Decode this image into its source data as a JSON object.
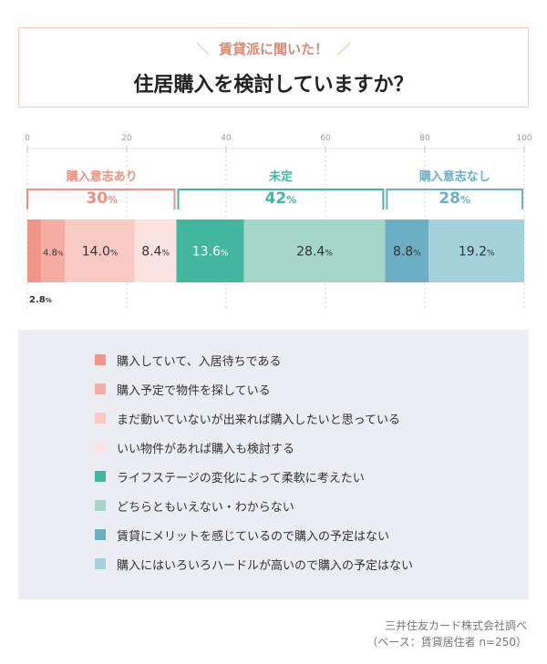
{
  "header": {
    "subtitle": "賃貸派に聞いた！",
    "title": "住居購入を検討していますか？"
  },
  "chart_data": {
    "type": "bar",
    "orientation": "horizontal-stacked",
    "xlim": [
      0,
      100
    ],
    "ticks": [
      "0",
      "20",
      "40",
      "60",
      "80",
      "100"
    ],
    "segments": [
      {
        "name": "購入していて、入居待ちである",
        "value": 2.8,
        "label": "2.8%",
        "color": "#f0958a"
      },
      {
        "name": "購入予定で物件を探している",
        "value": 4.8,
        "label": "4.8%",
        "color": "#f5ada3"
      },
      {
        "name": "まだ動いていないが出来れば購入したいと思っている",
        "value": 14.0,
        "label": "14.0%",
        "color": "#f9cac3"
      },
      {
        "name": "いい物件があれば購入も検討する",
        "value": 8.4,
        "label": "8.4%",
        "color": "#fde3df"
      },
      {
        "name": "ライフステージの変化によって柔軟に考えたい",
        "value": 13.6,
        "label": "13.6%",
        "color": "#42b69f"
      },
      {
        "name": "どちらともいえない・わからない",
        "value": 28.4,
        "label": "28.4%",
        "color": "#a5d6c8"
      },
      {
        "name": "賃貸にメリットを感じているので購入の予定はない",
        "value": 8.8,
        "label": "8.8%",
        "color": "#6cafc4"
      },
      {
        "name": "購入にはいろいろハードルが高いので購入の予定はない",
        "value": 19.2,
        "label": "19.2%",
        "color": "#a4d1dc"
      }
    ],
    "groups": [
      {
        "label": "購入意志あり",
        "value": "30",
        "unit": "%",
        "from": 0,
        "to": 30,
        "color": "#f08f82"
      },
      {
        "label": "未定",
        "value": "42",
        "unit": "%",
        "from": 30,
        "to": 72,
        "color": "#42b69f"
      },
      {
        "label": "購入意志なし",
        "value": "28",
        "unit": "%",
        "from": 72,
        "to": 100,
        "color": "#6cafc4"
      }
    ]
  },
  "footer": {
    "source": "三井住友カード株式会社調べ",
    "base": "（ベース：賃貸居住者 n=250）"
  }
}
